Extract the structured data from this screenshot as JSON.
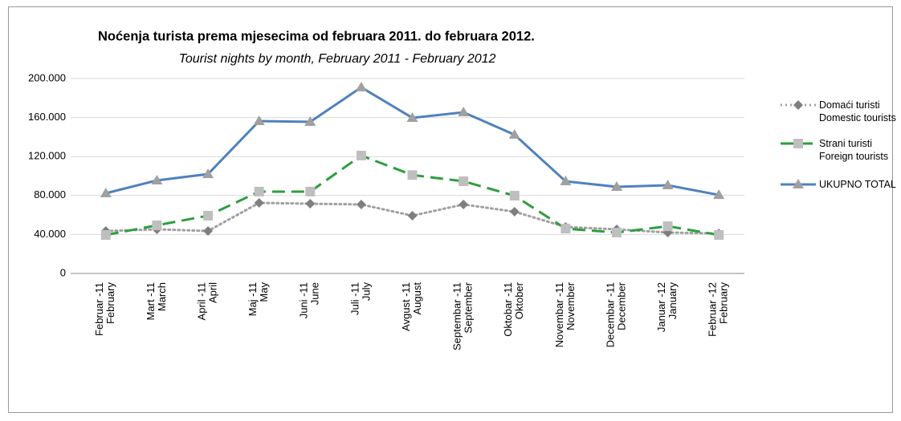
{
  "chart_data": {
    "type": "line",
    "title": "Noćenja turista prema mjesecima od februara 2011.  do februara 2012.",
    "subtitle": "Tourist nights by month,  February 2011 - February 2012",
    "categories": [
      [
        "Februar -11",
        "February"
      ],
      [
        "Mart -11",
        "March"
      ],
      [
        "April -11",
        "April"
      ],
      [
        "Maj -11",
        "May"
      ],
      [
        "Juni -11",
        "June"
      ],
      [
        "Juli -11",
        "July"
      ],
      [
        "Avgust -11",
        "August"
      ],
      [
        "Septembar -11",
        "September"
      ],
      [
        "Oktobar -11",
        "Oktober"
      ],
      [
        "Novembar -11",
        "November"
      ],
      [
        "Decembar -11",
        "December"
      ],
      [
        "Januar -12",
        "January"
      ],
      [
        "Februar -12",
        "February"
      ]
    ],
    "series": [
      {
        "name": "Domaći turisti Domestic tourists",
        "color": "#a0a0a0",
        "marker": "diamond",
        "marker_color": "#7f7f7f",
        "dash": "dotted",
        "values": [
          43600,
          45300,
          43600,
          72400,
          71600,
          70800,
          59300,
          70800,
          63400,
          47700,
          45300,
          42000,
          41100
        ]
      },
      {
        "name": "Strani turisti Foreign tourists",
        "color": "#2e9e3e",
        "marker": "square",
        "marker_color": "#bfbfbf",
        "dash": "dashed",
        "values": [
          39500,
          49400,
          59300,
          84000,
          84000,
          121000,
          101000,
          94600,
          79800,
          46000,
          42000,
          48500,
          39500
        ]
      },
      {
        "name": "UKUPNO TOTAL",
        "color": "#4f81bd",
        "marker": "triangle",
        "marker_color": "#a0a0a0",
        "dash": "solid",
        "values": [
          82300,
          95500,
          102000,
          156400,
          155600,
          191000,
          159700,
          165400,
          142400,
          94600,
          88900,
          90500,
          80600
        ]
      }
    ],
    "ylim": [
      0,
      200000
    ],
    "yticks": [
      0,
      {
        "value": 40000,
        "label": "40.000"
      },
      {
        "value": 80000,
        "label": "80.000"
      },
      {
        "value": 120000,
        "label": "120.000"
      },
      {
        "value": 160000,
        "label": "160.000"
      },
      {
        "value": 200000,
        "label": "200.000"
      }
    ],
    "grid": true,
    "legend": "right"
  }
}
